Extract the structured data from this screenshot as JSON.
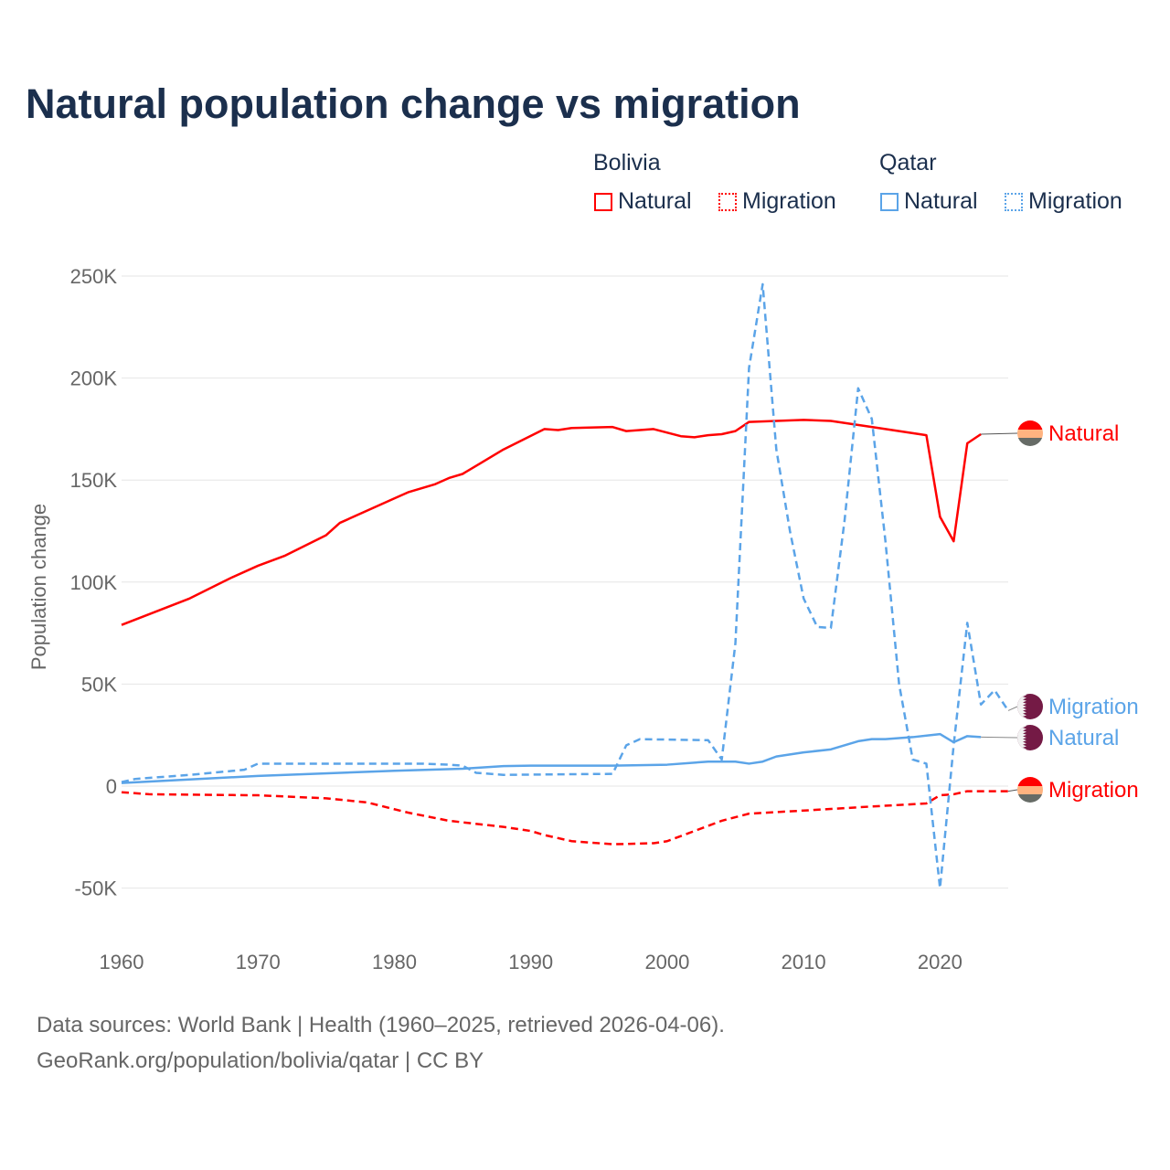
{
  "title": "Natural population change vs migration",
  "legend": {
    "groups": [
      {
        "name": "Bolivia",
        "items": [
          "Natural",
          "Migration"
        ],
        "color": "#ff0000"
      },
      {
        "name": "Qatar",
        "items": [
          "Natural",
          "Migration"
        ],
        "color": "#5ba4e8"
      }
    ]
  },
  "footer": {
    "line1": "Data sources: World Bank | Health (1960–2025, retrieved 2026-04-06).",
    "line2": "GeoRank.org/population/bolivia/qatar | CC BY"
  },
  "chart_data": {
    "type": "line",
    "title": "Natural population change vs migration",
    "xlabel": "",
    "ylabel": "Population change",
    "xlim": [
      1960,
      2025
    ],
    "ylim": [
      -75000,
      260000
    ],
    "xticks": [
      1960,
      1970,
      1980,
      1990,
      2000,
      2010,
      2020
    ],
    "xtick_labels": [
      "1960",
      "1970",
      "1980",
      "1990",
      "2000",
      "2010",
      "2020"
    ],
    "yticks": [
      -50000,
      0,
      50000,
      100000,
      150000,
      200000,
      250000
    ],
    "ytick_labels": [
      "-50K",
      "0",
      "50K",
      "100K",
      "150K",
      "200K",
      "250K"
    ],
    "grid": true,
    "legend_position": "top-right",
    "series": [
      {
        "name": "Bolivia Natural",
        "end_label": "Natural",
        "color": "#ff0000",
        "dash": false,
        "points": [
          [
            1960,
            79000
          ],
          [
            1965,
            92000
          ],
          [
            1968,
            102000
          ],
          [
            1970,
            108000
          ],
          [
            1972,
            113000
          ],
          [
            1975,
            123000
          ],
          [
            1976,
            129000
          ],
          [
            1980,
            141000
          ],
          [
            1981,
            144000
          ],
          [
            1983,
            148000
          ],
          [
            1984,
            151000
          ],
          [
            1985,
            153000
          ],
          [
            1988,
            165000
          ],
          [
            1991,
            175000
          ],
          [
            1992,
            174500
          ],
          [
            1993,
            175500
          ],
          [
            1996,
            176000
          ],
          [
            1997,
            174000
          ],
          [
            1999,
            175000
          ],
          [
            2001,
            171500
          ],
          [
            2002,
            171000
          ],
          [
            2003,
            172000
          ],
          [
            2004,
            172500
          ],
          [
            2005,
            174000
          ],
          [
            2006,
            178500
          ],
          [
            2010,
            179500
          ],
          [
            2012,
            179000
          ],
          [
            2015,
            176000
          ],
          [
            2019,
            172000
          ],
          [
            2020,
            132000
          ],
          [
            2021,
            120000
          ],
          [
            2022,
            168000
          ],
          [
            2023,
            172500
          ]
        ]
      },
      {
        "name": "Bolivia Migration",
        "end_label": "Migration",
        "color": "#ff0000",
        "dash": true,
        "points": [
          [
            1960,
            -3000
          ],
          [
            1962,
            -4000
          ],
          [
            1970,
            -4500
          ],
          [
            1975,
            -6000
          ],
          [
            1978,
            -8000
          ],
          [
            1981,
            -13000
          ],
          [
            1984,
            -17000
          ],
          [
            1988,
            -20000
          ],
          [
            1990,
            -22000
          ],
          [
            1991,
            -24000
          ],
          [
            1993,
            -27000
          ],
          [
            1996,
            -28500
          ],
          [
            1999,
            -28000
          ],
          [
            2000,
            -27000
          ],
          [
            2002,
            -22000
          ],
          [
            2004,
            -17000
          ],
          [
            2006,
            -13500
          ],
          [
            2010,
            -12000
          ],
          [
            2015,
            -10000
          ],
          [
            2019,
            -8500
          ],
          [
            2020,
            -4500
          ],
          [
            2021,
            -4000
          ],
          [
            2022,
            -2500
          ],
          [
            2025,
            -2500
          ]
        ]
      },
      {
        "name": "Qatar Natural",
        "end_label": "Natural",
        "color": "#5ba4e8",
        "dash": false,
        "points": [
          [
            1960,
            1500
          ],
          [
            1970,
            5000
          ],
          [
            1980,
            7500
          ],
          [
            1985,
            8500
          ],
          [
            1988,
            9800
          ],
          [
            1990,
            10000
          ],
          [
            1996,
            10000
          ],
          [
            2000,
            10500
          ],
          [
            2003,
            12000
          ],
          [
            2005,
            12000
          ],
          [
            2006,
            11000
          ],
          [
            2007,
            12000
          ],
          [
            2008,
            14500
          ],
          [
            2010,
            16500
          ],
          [
            2012,
            18000
          ],
          [
            2014,
            22000
          ],
          [
            2015,
            23000
          ],
          [
            2016,
            23000
          ],
          [
            2018,
            24000
          ],
          [
            2020,
            25500
          ],
          [
            2021,
            21500
          ],
          [
            2022,
            24500
          ],
          [
            2023,
            24000
          ]
        ]
      },
      {
        "name": "Qatar Migration",
        "end_label": "Migration",
        "color": "#5ba4e8",
        "dash": true,
        "points": [
          [
            1960,
            2000
          ],
          [
            1961,
            3500
          ],
          [
            1965,
            5500
          ],
          [
            1969,
            8000
          ],
          [
            1970,
            11000
          ],
          [
            1982,
            11000
          ],
          [
            1984,
            10500
          ],
          [
            1985,
            10000
          ],
          [
            1986,
            6500
          ],
          [
            1988,
            5500
          ],
          [
            1996,
            6000
          ],
          [
            1997,
            20000
          ],
          [
            1998,
            23000
          ],
          [
            2003,
            22500
          ],
          [
            2004,
            13000
          ],
          [
            2005,
            70000
          ],
          [
            2006,
            205000
          ],
          [
            2007,
            246000
          ],
          [
            2008,
            165000
          ],
          [
            2009,
            125000
          ],
          [
            2010,
            92000
          ],
          [
            2011,
            78000
          ],
          [
            2012,
            77500
          ],
          [
            2013,
            130000
          ],
          [
            2014,
            195000
          ],
          [
            2015,
            180000
          ],
          [
            2016,
            120000
          ],
          [
            2017,
            50000
          ],
          [
            2018,
            13000
          ],
          [
            2019,
            11000
          ],
          [
            2020,
            -50000
          ],
          [
            2021,
            20000
          ],
          [
            2022,
            80000
          ],
          [
            2023,
            40000
          ],
          [
            2024,
            47000
          ],
          [
            2025,
            37000
          ]
        ]
      }
    ]
  }
}
